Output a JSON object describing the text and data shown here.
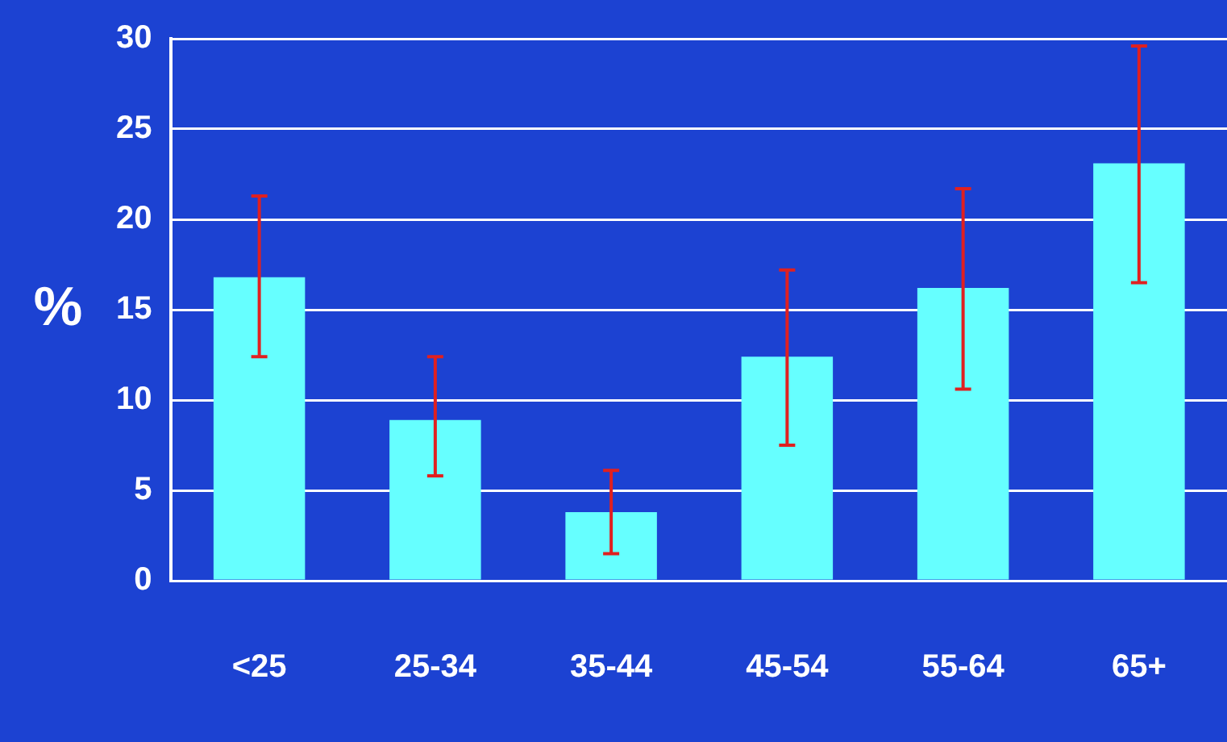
{
  "chart_data": {
    "type": "bar",
    "ylabel": "%",
    "categories": [
      "<25",
      "25-34",
      "35-44",
      "45-54",
      "55-64",
      "65+"
    ],
    "values": [
      16.8,
      8.9,
      3.8,
      12.4,
      16.2,
      23.1
    ],
    "errors": [
      [
        12.4,
        21.3
      ],
      [
        5.8,
        12.4
      ],
      [
        1.5,
        6.1
      ],
      [
        7.5,
        17.2
      ],
      [
        10.6,
        21.7
      ],
      [
        16.5,
        29.6
      ]
    ],
    "color": "#66ffff",
    "ylim": [
      0,
      30
    ],
    "yticks": [
      0,
      5,
      10,
      15,
      20,
      25,
      30
    ],
    "grid": "y",
    "legend": false
  }
}
